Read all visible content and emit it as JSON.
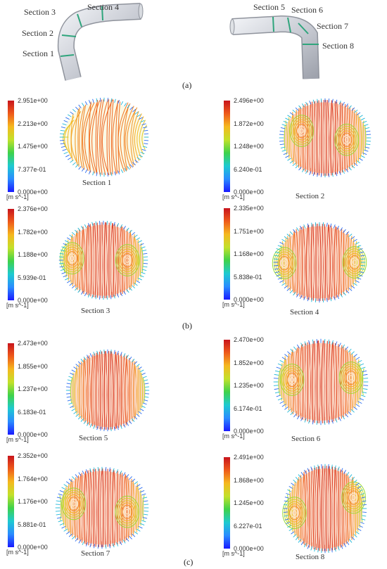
{
  "panel_labels": {
    "a": "(a)",
    "b": "(b)",
    "c": "(c)"
  },
  "geometry_labels": [
    "Section 1",
    "Section 2",
    "Section 3",
    "Section 4",
    "Section 5",
    "Section 6",
    "Section 7",
    "Section 8"
  ],
  "colorbar": {
    "unit": "[m s^-1]",
    "colors": [
      "#1a1aff",
      "#2a8cff",
      "#1ecad0",
      "#3ed24a",
      "#c2e12a",
      "#f5b81e",
      "#ee5a1a",
      "#c8141c"
    ]
  },
  "sections": [
    {
      "caption": "Section 1",
      "ticks": [
        "2.951e+00",
        "2.213e+00",
        "1.475e+00",
        "7.377e-01",
        "0.000e+00"
      ]
    },
    {
      "caption": "Section 2",
      "ticks": [
        "2.496e+00",
        "1.872e+00",
        "1.248e+00",
        "6.240e-01",
        "0.000e+00"
      ]
    },
    {
      "caption": "Section 3",
      "ticks": [
        "2.376e+00",
        "1.782e+00",
        "1.188e+00",
        "5.939e-01",
        "0.000e+00"
      ]
    },
    {
      "caption": "Section 4",
      "ticks": [
        "2.335e+00",
        "1.751e+00",
        "1.168e+00",
        "5.838e-01",
        "0.000e+00"
      ]
    },
    {
      "caption": "Section 5",
      "ticks": [
        "2.473e+00",
        "1.855e+00",
        "1.237e+00",
        "6.183e-01",
        "0.000e+00"
      ]
    },
    {
      "caption": "Section 6",
      "ticks": [
        "2.470e+00",
        "1.852e+00",
        "1.235e+00",
        "6.174e-01",
        "0.000e+00"
      ]
    },
    {
      "caption": "Section 7",
      "ticks": [
        "2.352e+00",
        "1.764e+00",
        "1.176e+00",
        "5.881e-01",
        "0.000e+00"
      ]
    },
    {
      "caption": "Section 8",
      "ticks": [
        "2.491e+00",
        "1.868e+00",
        "1.245e+00",
        "6.227e-01",
        "0.000e+00"
      ]
    }
  ]
}
